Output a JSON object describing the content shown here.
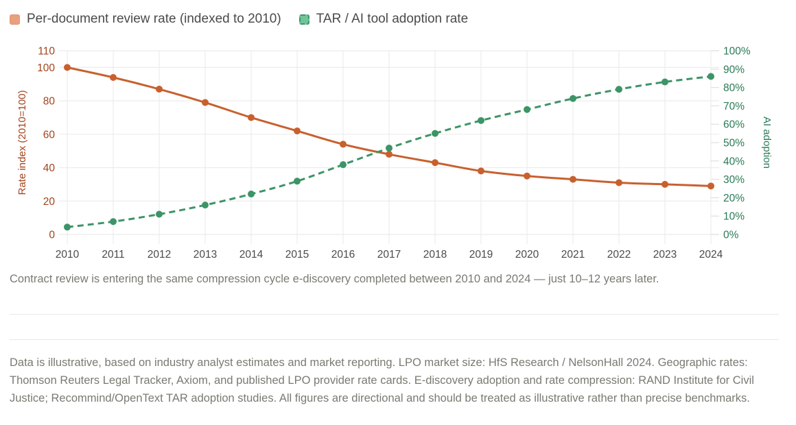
{
  "legend": {
    "items": [
      {
        "label": "Per-document review rate (indexed to 2010)",
        "icon": "solid-swatch-icon"
      },
      {
        "label": "TAR / AI tool adoption rate",
        "icon": "dashed-swatch-icon"
      }
    ]
  },
  "caption": "Contract review is entering the same compression cycle e-discovery completed between 2010 and 2024 — just 10–12 years later.",
  "notes": "Data is illustrative, based on industry analyst estimates and market reporting. LPO market size: HfS Research / NelsonHall 2024. Geographic rates: Thomson Reuters Legal Tracker, Axiom, and published LPO provider rate cards. E-discovery adoption and rate compression: RAND Institute for Civil Justice; Recommind/OpenText TAR adoption studies. All figures are directional and should be treated as illustrative rather than precise benchmarks.",
  "colors": {
    "review_rate": "#c8602e",
    "adoption": "#3d9467",
    "left_axis_text": "#a3431c",
    "right_axis_text": "#2a7a55",
    "grid": "#ececec"
  },
  "chart_data": {
    "type": "line",
    "title": "",
    "x": [
      "2010",
      "2011",
      "2012",
      "2013",
      "2014",
      "2015",
      "2016",
      "2017",
      "2018",
      "2019",
      "2020",
      "2021",
      "2022",
      "2023",
      "2024"
    ],
    "series": [
      {
        "name": "Per-document review rate (indexed to 2010)",
        "axis": "left",
        "style": "solid",
        "values": [
          100,
          94,
          87,
          79,
          70,
          62,
          54,
          48,
          43,
          38,
          35,
          33,
          31,
          30,
          29
        ]
      },
      {
        "name": "TAR / AI tool adoption rate",
        "axis": "right",
        "style": "dashed",
        "values": [
          4,
          7,
          11,
          16,
          22,
          29,
          38,
          47,
          55,
          62,
          68,
          74,
          79,
          83,
          86
        ]
      }
    ],
    "xlabel": "",
    "ylabel": "Rate index (2010=100)",
    "ylabel_right": "AI adoption",
    "ylim": [
      0,
      110
    ],
    "ylim_right": [
      0,
      100
    ],
    "yticks": [
      "0",
      "20",
      "40",
      "60",
      "80",
      "100",
      "110"
    ],
    "yticks_values": [
      0,
      20,
      40,
      60,
      80,
      100,
      110
    ],
    "yticks_right": [
      "0%",
      "10%",
      "20%",
      "30%",
      "40%",
      "50%",
      "60%",
      "70%",
      "80%",
      "90%",
      "100%"
    ],
    "yticks_right_values": [
      0,
      10,
      20,
      30,
      40,
      50,
      60,
      70,
      80,
      90,
      100
    ],
    "grid": true,
    "legend_position": "top-left"
  }
}
